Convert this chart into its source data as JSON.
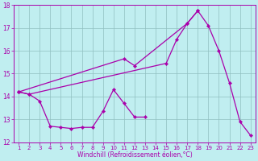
{
  "xlabel": "Windchill (Refroidissement éolien,°C)",
  "line1_x": [
    1,
    2,
    3,
    4,
    5,
    6,
    7,
    8,
    9,
    10,
    11,
    12,
    13
  ],
  "line1_y": [
    14.2,
    14.1,
    13.8,
    12.7,
    12.65,
    12.6,
    12.65,
    12.65,
    13.35,
    14.3,
    13.7,
    13.1,
    13.1
  ],
  "line2_x": [
    1,
    2,
    15,
    16,
    17,
    18
  ],
  "line2_y": [
    14.2,
    14.1,
    15.45,
    16.5,
    17.2,
    17.75
  ],
  "line3_x": [
    1,
    11,
    12,
    17,
    18,
    19,
    20,
    21,
    22,
    23
  ],
  "line3_y": [
    14.2,
    15.65,
    15.35,
    17.2,
    17.75,
    17.1,
    16.0,
    14.6,
    12.9,
    12.3
  ],
  "line_color": "#AA00AA",
  "bg_color": "#C0EEF0",
  "grid_color": "#90C0C0",
  "ylim": [
    12,
    18
  ],
  "xlim_min": 0.5,
  "xlim_max": 23.5,
  "yticks": [
    12,
    13,
    14,
    15,
    16,
    17,
    18
  ],
  "xticks": [
    1,
    2,
    3,
    4,
    5,
    6,
    7,
    8,
    9,
    10,
    11,
    12,
    13,
    14,
    15,
    16,
    17,
    18,
    19,
    20,
    21,
    22,
    23
  ],
  "tick_fontsize": 5,
  "xlabel_fontsize": 5.5,
  "linewidth": 0.9,
  "markersize": 2.2
}
